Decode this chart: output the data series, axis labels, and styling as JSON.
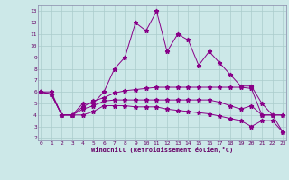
{
  "xlabel": "Windchill (Refroidissement éolien,°C)",
  "background_color": "#cce8e8",
  "line_color": "#880088",
  "grid_color": "#aacccc",
  "x_ticks": [
    0,
    1,
    2,
    3,
    4,
    5,
    6,
    7,
    8,
    9,
    10,
    11,
    12,
    13,
    14,
    15,
    16,
    17,
    18,
    19,
    20,
    21,
    22,
    23
  ],
  "y_ticks": [
    2,
    3,
    4,
    5,
    6,
    7,
    8,
    9,
    10,
    11,
    12,
    13
  ],
  "ylim": [
    1.8,
    13.5
  ],
  "xlim": [
    -0.3,
    23.3
  ],
  "series1_y": [
    6,
    6,
    4,
    4,
    5,
    5,
    6,
    8,
    9,
    12,
    11.3,
    13,
    9.5,
    11,
    10.5,
    8.3,
    9.5,
    8.5,
    7.5,
    6.5,
    6.5,
    5,
    4,
    4
  ],
  "series2_y": [
    6,
    5.8,
    4,
    4,
    4.7,
    5.2,
    5.5,
    5.9,
    6.1,
    6.2,
    6.3,
    6.4,
    6.4,
    6.4,
    6.4,
    6.4,
    6.4,
    6.4,
    6.4,
    6.4,
    6.3,
    4,
    4,
    4
  ],
  "series3_y": [
    6,
    5.8,
    4,
    4,
    4.5,
    4.8,
    5.2,
    5.3,
    5.3,
    5.3,
    5.3,
    5.3,
    5.3,
    5.3,
    5.3,
    5.3,
    5.3,
    5.1,
    4.8,
    4.5,
    4.8,
    4,
    4,
    2.5
  ],
  "series4_y": [
    6,
    5.8,
    4,
    4,
    4,
    4.3,
    4.8,
    4.8,
    4.8,
    4.7,
    4.7,
    4.7,
    4.5,
    4.4,
    4.3,
    4.2,
    4.1,
    3.9,
    3.7,
    3.5,
    3.0,
    3.5,
    3.5,
    2.5
  ]
}
